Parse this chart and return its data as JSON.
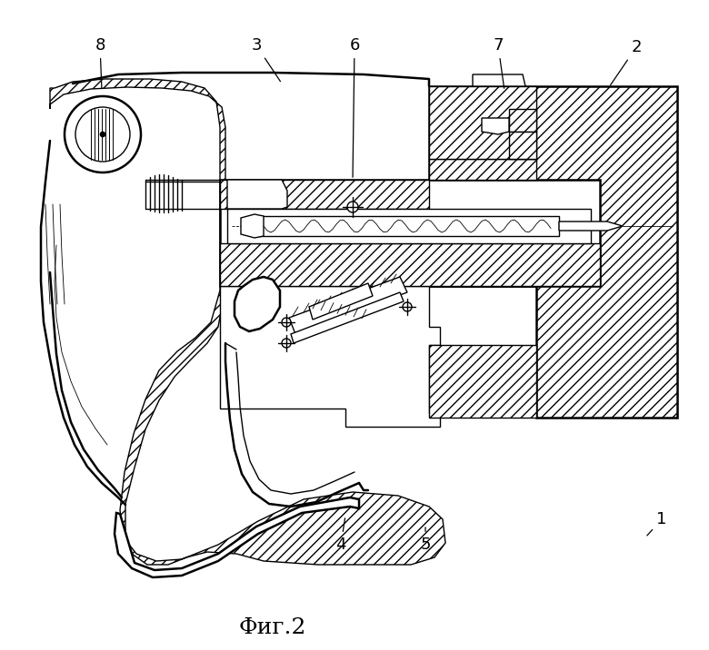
{
  "caption": "Фиг.2",
  "caption_fontsize": 18,
  "bg_color": "#ffffff",
  "lw1": 1.0,
  "lw2": 1.8,
  "lw3": 0.6,
  "figsize": [
    7.8,
    7.16
  ],
  "dpi": 100,
  "label_fs": 13
}
